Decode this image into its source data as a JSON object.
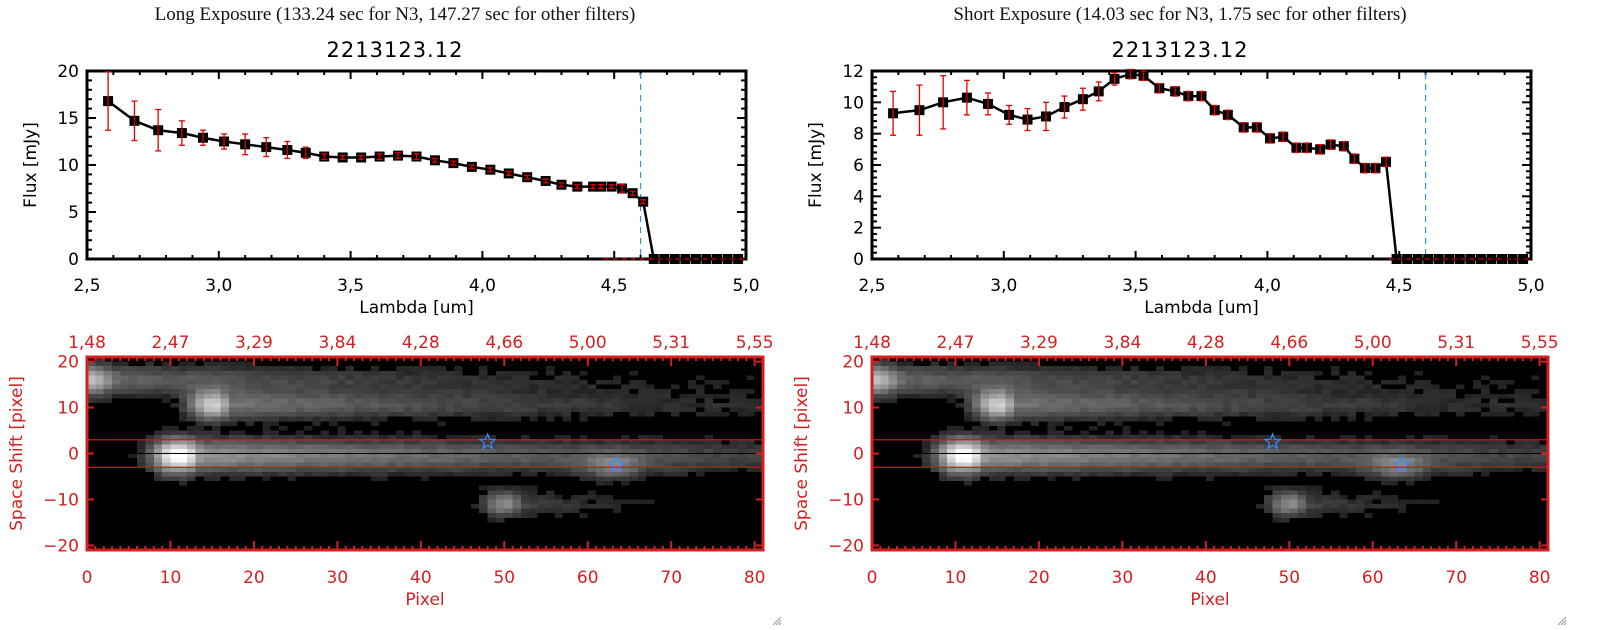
{
  "panels": [
    {
      "id": "long",
      "exposure_title": "Long Exposure (133.24 sec for N3, 147.27 sec for other filters)",
      "object_title": "2213123.12",
      "spectrum_chart": "chart_data.0",
      "image_chart": "chart_data.2"
    },
    {
      "id": "short",
      "exposure_title": "Short Exposure (14.03 sec for N3, 1.75 sec for other filters)",
      "object_title": "2213123.12",
      "spectrum_chart": "chart_data.1",
      "image_chart": "chart_data.3"
    }
  ],
  "colors": {
    "data_line": "#000000",
    "error_bar": "#e00000",
    "cutoff_line": "#3a8fdf",
    "zero_line": "#e00000",
    "image_axes": "#d42020",
    "aperture_line": "#e01010",
    "star_marker": "#2f8fff"
  },
  "icons": {
    "resize_grip": "resize-grip-icon",
    "star_marker": "star-icon"
  },
  "chart_data": [
    {
      "type": "line",
      "title": "2213123.12",
      "xlabel": "Lambda [um]",
      "ylabel": "Flux [mJy]",
      "xlim": [
        2.5,
        5.0
      ],
      "ylim": [
        0,
        20
      ],
      "xticks": [
        "2.5",
        "3.0",
        "3.5",
        "4.0",
        "4.5",
        "5.0"
      ],
      "yticks": [
        "0",
        "5",
        "10",
        "15",
        "20"
      ],
      "vline_x": 4.6,
      "grid": false,
      "series": [
        {
          "name": "flux",
          "x": [
            2.58,
            2.68,
            2.77,
            2.86,
            2.94,
            3.02,
            3.1,
            3.18,
            3.26,
            3.33,
            3.4,
            3.47,
            3.54,
            3.61,
            3.68,
            3.75,
            3.82,
            3.89,
            3.96,
            4.03,
            4.1,
            4.17,
            4.24,
            4.3,
            4.36,
            4.42,
            4.45,
            4.49,
            4.53,
            4.57,
            4.61,
            4.65,
            4.69,
            4.73,
            4.77,
            4.81,
            4.85,
            4.89,
            4.93,
            4.97
          ],
          "y": [
            16.8,
            14.7,
            13.7,
            13.4,
            12.9,
            12.5,
            12.2,
            11.9,
            11.6,
            11.3,
            10.9,
            10.8,
            10.8,
            10.9,
            11.0,
            10.9,
            10.5,
            10.2,
            9.8,
            9.5,
            9.1,
            8.7,
            8.3,
            7.9,
            7.7,
            7.7,
            7.7,
            7.7,
            7.5,
            7.0,
            6.1,
            0,
            0,
            0,
            0,
            0,
            0,
            0,
            0,
            0
          ],
          "err": [
            3.1,
            2.1,
            2.2,
            1.3,
            0.8,
            0.8,
            1.1,
            1.0,
            0.9,
            0.6,
            0.3,
            0.2,
            0.2,
            0.3,
            0.3,
            0.3,
            0.2,
            0.2,
            0.2,
            0.2,
            0.2,
            0.2,
            0.2,
            0.2,
            0.2,
            0.2,
            0.2,
            0.2,
            0.4,
            0.2,
            0.2,
            0,
            0,
            0,
            0,
            0,
            0,
            0,
            0,
            0
          ]
        }
      ]
    },
    {
      "type": "line",
      "title": "2213123.12",
      "xlabel": "Lambda [um]",
      "ylabel": "Flux [mJy]",
      "xlim": [
        2.5,
        5.0
      ],
      "ylim": [
        0,
        12
      ],
      "xticks": [
        "2.5",
        "3.0",
        "3.5",
        "4.0",
        "4.5",
        "5.0"
      ],
      "yticks": [
        "0",
        "2",
        "4",
        "6",
        "8",
        "10",
        "12"
      ],
      "vline_x": 4.6,
      "grid": false,
      "series": [
        {
          "name": "flux",
          "x": [
            2.58,
            2.68,
            2.77,
            2.86,
            2.94,
            3.02,
            3.09,
            3.16,
            3.23,
            3.3,
            3.36,
            3.42,
            3.48,
            3.53,
            3.59,
            3.65,
            3.7,
            3.75,
            3.8,
            3.85,
            3.91,
            3.96,
            4.01,
            4.06,
            4.11,
            4.15,
            4.2,
            4.24,
            4.29,
            4.33,
            4.37,
            4.41,
            4.45,
            4.49,
            4.53,
            4.57,
            4.61,
            4.65,
            4.69,
            4.73,
            4.77,
            4.81,
            4.85,
            4.89,
            4.93,
            4.97
          ],
          "y": [
            9.3,
            9.5,
            10.0,
            10.3,
            9.9,
            9.2,
            8.9,
            9.1,
            9.7,
            10.2,
            10.7,
            11.5,
            11.8,
            11.7,
            10.9,
            10.7,
            10.4,
            10.4,
            9.5,
            9.2,
            8.4,
            8.4,
            7.7,
            7.8,
            7.1,
            7.1,
            7.0,
            7.3,
            7.2,
            6.4,
            5.8,
            5.8,
            6.2,
            0,
            0,
            0,
            0,
            0,
            0,
            0,
            0,
            0,
            0,
            0,
            0,
            0
          ],
          "err": [
            1.4,
            1.6,
            1.7,
            1.1,
            0.7,
            0.6,
            0.7,
            0.9,
            0.7,
            0.7,
            0.6,
            0.4,
            0.3,
            0.3,
            0.3,
            0.3,
            0.3,
            0.3,
            0.3,
            0.3,
            0.3,
            0.3,
            0.3,
            0.3,
            0.3,
            0.3,
            0.3,
            0.3,
            0.3,
            0.3,
            0.3,
            0.3,
            0.3,
            0,
            0,
            0,
            0,
            0,
            0,
            0,
            0,
            0,
            0,
            0,
            0,
            0
          ]
        }
      ]
    },
    {
      "type": "heatmap",
      "xlabel": "Pixel",
      "ylabel": "Space Shift [pixel]",
      "xlim": [
        0,
        81
      ],
      "ylim": [
        -21,
        21
      ],
      "xticks": [
        "0",
        "10",
        "20",
        "30",
        "40",
        "50",
        "60",
        "70",
        "80"
      ],
      "yticks": [
        "-20",
        "-10",
        "0",
        "10",
        "20"
      ],
      "top_axis_label_values": [
        "1.48",
        "2.47",
        "3.29",
        "3.84",
        "4.28",
        "4.66",
        "5.00",
        "5.31",
        "5.55"
      ],
      "aperture_rows": [
        3,
        -3
      ],
      "center_row": 0,
      "stars": [
        {
          "x": 48,
          "y": 2.5
        },
        {
          "x": 63.5,
          "y": -2.5
        }
      ],
      "sources": [
        {
          "x": 11,
          "y": -0.5,
          "amp": 1.0,
          "sx": 2.2,
          "sy": 2.6,
          "tail": 62
        },
        {
          "x": 15,
          "y": 10.5,
          "amp": 0.72,
          "sx": 2.0,
          "sy": 2.2,
          "tail": 45
        },
        {
          "x": 0,
          "y": 16,
          "amp": 0.65,
          "sx": 3.0,
          "sy": 2.3,
          "tail": 40
        },
        {
          "x": 50,
          "y": -11,
          "amp": 0.45,
          "sx": 1.8,
          "sy": 2.0,
          "tail": 12
        },
        {
          "x": 63,
          "y": -3,
          "amp": 0.28,
          "sx": 2.5,
          "sy": 2.0,
          "tail": 5
        }
      ]
    },
    {
      "type": "heatmap",
      "xlabel": "Pixel",
      "ylabel": "Space Shift [pixel]",
      "xlim": [
        0,
        81
      ],
      "ylim": [
        -21,
        21
      ],
      "xticks": [
        "0",
        "10",
        "20",
        "30",
        "40",
        "50",
        "60",
        "70",
        "80"
      ],
      "yticks": [
        "-20",
        "-10",
        "0",
        "10",
        "20"
      ],
      "top_axis_label_values": [
        "1.48",
        "2.47",
        "3.29",
        "3.84",
        "4.28",
        "4.66",
        "5.00",
        "5.31",
        "5.55"
      ],
      "aperture_rows": [
        3,
        -3
      ],
      "center_row": 0,
      "stars": [
        {
          "x": 48,
          "y": 2.5
        },
        {
          "x": 63.5,
          "y": -2.5
        }
      ],
      "sources": [
        {
          "x": 11,
          "y": -0.5,
          "amp": 1.0,
          "sx": 2.2,
          "sy": 2.6,
          "tail": 62
        },
        {
          "x": 15,
          "y": 10.5,
          "amp": 0.72,
          "sx": 2.0,
          "sy": 2.2,
          "tail": 45
        },
        {
          "x": 0,
          "y": 16,
          "amp": 0.65,
          "sx": 3.0,
          "sy": 2.3,
          "tail": 40
        },
        {
          "x": 50,
          "y": -11,
          "amp": 0.45,
          "sx": 1.8,
          "sy": 2.0,
          "tail": 12
        },
        {
          "x": 63,
          "y": -3,
          "amp": 0.28,
          "sx": 2.5,
          "sy": 2.0,
          "tail": 5
        }
      ]
    }
  ]
}
